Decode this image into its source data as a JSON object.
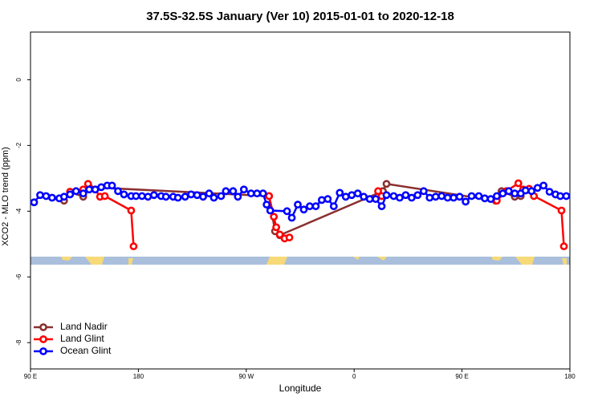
{
  "chart_data": {
    "type": "line",
    "title": "37.5S-32.5S January (Ver 10)   2015-01-01 to 2020-12-18",
    "x_label": "Longitude",
    "y_label": "XCO2 - MLO trend (ppm)",
    "xlim": [
      90,
      540
    ],
    "ylim": [
      -8.8,
      1.45
    ],
    "xticks": [
      {
        "value": 90,
        "label": "90 E"
      },
      180,
      {
        "value": 270,
        "label": "90 W"
      },
      {
        "value": 360,
        "label": "0"
      },
      {
        "value": 450,
        "label": "90 E"
      },
      {
        "value": 540,
        "label": "180"
      }
    ],
    "yticks": [
      0,
      -2,
      -4,
      -6,
      -8
    ],
    "legend": "bottom-left",
    "series": [
      {
        "name": "Land Nadir",
        "color": "#8b3030",
        "x": [
          118,
          123,
          134,
          139,
          289,
          294,
          298,
          384,
          387,
          478,
          483,
          494,
          499
        ],
        "values": [
          -3.68,
          -3.41,
          -3.56,
          -3.27,
          -3.54,
          -4.61,
          -4.73,
          -3.39,
          -3.17,
          -3.68,
          -3.39,
          -3.56,
          -3.54
        ]
      },
      {
        "name": "Land Glint",
        "color": "#ff0000",
        "x": [
          123,
          134,
          138,
          144,
          148,
          152,
          174,
          176,
          200,
          289,
          293,
          295,
          298,
          302,
          306,
          330,
          380,
          383,
          420,
          479,
          487,
          497,
          501,
          506,
          510,
          533,
          535
        ],
        "values": [
          -3.41,
          -3.34,
          -3.17,
          -3.34,
          -3.56,
          -3.54,
          -3.98,
          -5.07,
          null,
          -3.54,
          -4.17,
          -4.49,
          -4.71,
          -4.83,
          -4.8,
          null,
          -3.39,
          -3.54,
          null,
          -3.68,
          -3.39,
          -3.15,
          -3.34,
          -3.32,
          -3.54,
          -3.98,
          -5.07
        ]
      },
      {
        "name": "Ocean Glint",
        "color": "#0000ff",
        "x": [
          93,
          98,
          103,
          108,
          114,
          118,
          123,
          128,
          134,
          139,
          144,
          149,
          154,
          158,
          163,
          168,
          174,
          178,
          183,
          188,
          193,
          199,
          203,
          209,
          213,
          219,
          224,
          229,
          234,
          239,
          243,
          249,
          253,
          259,
          263,
          268,
          274,
          279,
          284,
          287,
          290,
          304,
          308,
          313,
          318,
          323,
          328,
          333,
          338,
          343,
          348,
          353,
          358,
          363,
          368,
          373,
          378,
          383,
          387,
          393,
          398,
          403,
          408,
          413,
          418,
          423,
          428,
          433,
          438,
          443,
          448,
          453,
          458,
          464,
          469,
          474,
          479,
          484,
          489,
          494,
          499,
          503,
          508,
          513,
          518,
          523,
          528,
          532,
          537
        ],
        "values": [
          -3.73,
          -3.51,
          -3.54,
          -3.59,
          -3.61,
          -3.56,
          -3.49,
          -3.39,
          -3.46,
          -3.34,
          -3.34,
          -3.27,
          -3.22,
          -3.22,
          -3.39,
          -3.49,
          -3.54,
          -3.54,
          -3.54,
          -3.56,
          -3.51,
          -3.54,
          -3.56,
          -3.56,
          -3.59,
          -3.56,
          -3.49,
          -3.51,
          -3.56,
          -3.46,
          -3.59,
          -3.54,
          -3.39,
          -3.39,
          -3.56,
          -3.34,
          -3.46,
          -3.46,
          -3.46,
          -3.8,
          -3.98,
          -4.0,
          -4.2,
          -3.8,
          -3.95,
          -3.85,
          -3.85,
          -3.66,
          -3.63,
          -3.85,
          -3.44,
          -3.56,
          -3.51,
          -3.46,
          -3.56,
          -3.63,
          -3.63,
          -3.85,
          -3.51,
          -3.54,
          -3.59,
          -3.51,
          -3.59,
          -3.51,
          -3.39,
          -3.59,
          -3.56,
          -3.54,
          -3.59,
          -3.59,
          -3.56,
          -3.71,
          -3.54,
          -3.54,
          -3.61,
          -3.63,
          -3.54,
          -3.46,
          -3.39,
          -3.46,
          -3.46,
          -3.37,
          -3.39,
          -3.29,
          -3.22,
          -3.41,
          -3.49,
          -3.54,
          -3.54
        ]
      }
    ]
  }
}
